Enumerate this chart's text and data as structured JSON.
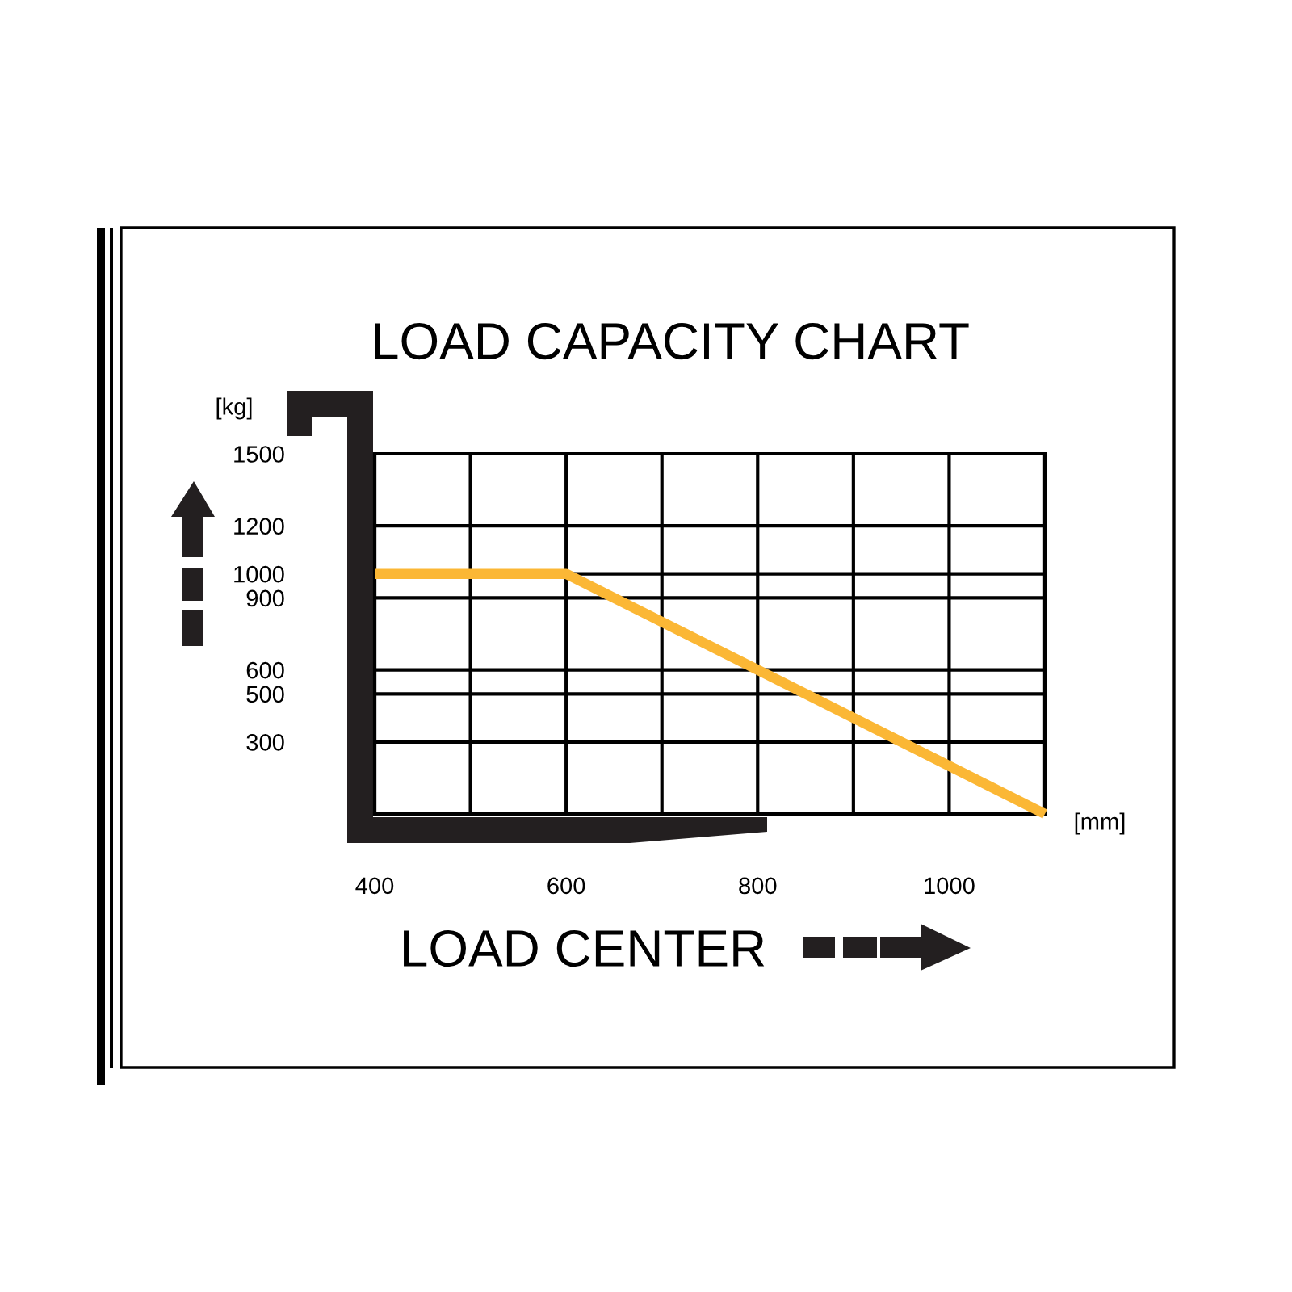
{
  "chart_data": {
    "type": "line",
    "title": "LOAD CAPACITY CHART",
    "xlabel": "LOAD CENTER",
    "ylabel": "[kg]",
    "annotations": [
      "[mm]"
    ],
    "x": [
      400,
      600,
      1100
    ],
    "series": [
      {
        "color": "#fbb735",
        "values": [
          1000,
          1000,
          0
        ]
      }
    ],
    "xlim": [
      400,
      1100
    ],
    "ylim": [
      0,
      1500
    ],
    "xticks": [
      400,
      {
        "value": 500,
        "label": null
      },
      600,
      {
        "value": 700,
        "label": null
      },
      800,
      {
        "value": 900,
        "label": null
      },
      1000,
      {
        "value": 1100,
        "label": null
      }
    ],
    "yticks": [
      300,
      500,
      600,
      900,
      1000,
      1200,
      1500
    ],
    "grid": true,
    "legend": false,
    "marker": "none",
    "line_style": "solid"
  }
}
